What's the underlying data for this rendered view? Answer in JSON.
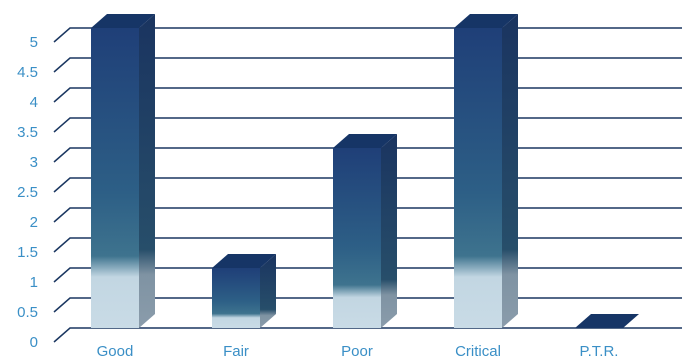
{
  "chart_data": {
    "type": "bar",
    "title": "",
    "xlabel": "",
    "ylabel": "",
    "categories": [
      "Good",
      "Fair",
      "Poor",
      "Critical",
      "P.T.R."
    ],
    "values": [
      5,
      1,
      3,
      5,
      0
    ],
    "ylim": [
      0,
      5
    ],
    "y_ticks": [
      "0",
      "0.5",
      "1",
      "1.5",
      "2",
      "2.5",
      "3",
      "3.5",
      "4",
      "4.5",
      "5"
    ],
    "grid": true,
    "legend": "none",
    "style": "3d-column",
    "colors": {
      "bar_top": "#1f3f78",
      "bar_mid": "#2d5f86",
      "bar_light": "#c2d6e2",
      "bar_side": "#1b3560",
      "bar_cap": "#163566",
      "grid": "#1a3660",
      "axis_label": "#3a8fc6"
    }
  }
}
